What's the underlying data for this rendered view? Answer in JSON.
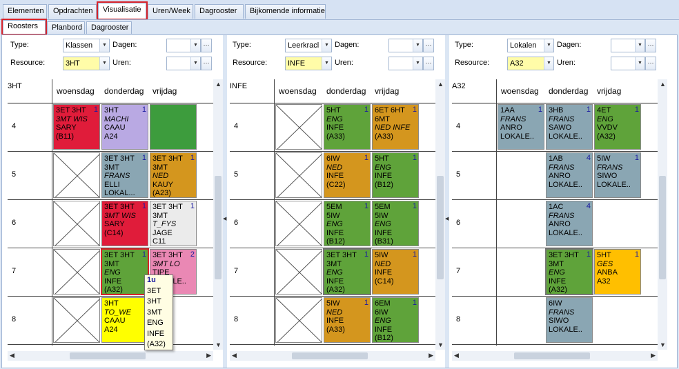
{
  "top_tabs": [
    "Elementen",
    "Opdrachten",
    "Visualisatie",
    "Uren/Week",
    "Dagrooster",
    "Bijkomende informatie"
  ],
  "sub_tabs": [
    "Roosters",
    "Planbord",
    "Dagrooster"
  ],
  "labels": {
    "type": "Type:",
    "resource": "Resource:",
    "dagen": "Dagen:",
    "uren": "Uren:"
  },
  "days": [
    "woensdag",
    "donderdag",
    "vrijdag"
  ],
  "hours": [
    "4",
    "5",
    "6",
    "7",
    "8"
  ],
  "panes": [
    {
      "type": "Klassen",
      "resource": "3HT",
      "title": "3HT",
      "cells": [
        {
          "row": 0,
          "col": 0,
          "color": "#e01c3a",
          "lines": [
            "3ET  3HT",
            "3MT  WIS",
            "SARY",
            "(B11)"
          ],
          "ital": [
            1
          ],
          "num": "1"
        },
        {
          "row": 0,
          "col": 1,
          "color": "#b9a9e3",
          "lines": [
            "3HT",
            "MACHI",
            "CAAU",
            "A24"
          ],
          "ital": [
            1
          ],
          "num": "1"
        },
        {
          "row": 0,
          "col": 2,
          "color": "#3d9c3d",
          "lines": [],
          "ital": [],
          "num": ""
        },
        {
          "row": 1,
          "col": 0,
          "x": true
        },
        {
          "row": 1,
          "col": 1,
          "color": "#8aa6b3",
          "lines": [
            "3ET  3HT",
            "3MT",
            "FRANS",
            "ELLI",
            "LOKAL..."
          ],
          "ital": [
            2
          ],
          "num": "1"
        },
        {
          "row": 1,
          "col": 2,
          "color": "#d4961e",
          "lines": [
            "3ET  3HT",
            "3MT",
            "NED",
            "KAUY",
            "(A23)"
          ],
          "ital": [
            2
          ],
          "num": "1"
        },
        {
          "row": 2,
          "col": 0,
          "x": true
        },
        {
          "row": 2,
          "col": 1,
          "color": "#e01c3a",
          "lines": [
            "3ET  3HT",
            "3MT  WIS",
            "SARY",
            "(C14)"
          ],
          "ital": [
            1
          ],
          "num": "1"
        },
        {
          "row": 2,
          "col": 2,
          "color": "#ebebeb",
          "lines": [
            "3ET  3HT",
            "3MT",
            "T_FYS",
            "JAGE",
            "C11"
          ],
          "ital": [
            2
          ],
          "num": "1"
        },
        {
          "row": 3,
          "col": 0,
          "x": true
        },
        {
          "row": 3,
          "col": 1,
          "color": "#5fa33a",
          "lines": [
            "3ET  3HT",
            "3MT",
            "ENG",
            "INFE",
            "(A32)"
          ],
          "ital": [
            2
          ],
          "num": "1",
          "sel": true
        },
        {
          "row": 3,
          "col": 2,
          "color": "#ea88b4",
          "lines": [
            "3ET  3HT",
            "3MT  LO",
            "TIPE",
            "LOKALE.."
          ],
          "ital": [
            1
          ],
          "num": "2"
        },
        {
          "row": 4,
          "col": 0,
          "x": true
        },
        {
          "row": 4,
          "col": 1,
          "color": "#ffff00",
          "lines": [
            "3HT",
            "TO_WE",
            "CAAU",
            "A24"
          ],
          "ital": [
            1
          ],
          "num": ""
        },
        {
          "row": 4,
          "col": 2,
          "color": "#ffffff",
          "lines": [],
          "ital": [],
          "num": "",
          "empty": true
        }
      ]
    },
    {
      "type": "Leerkracl",
      "resource": "INFE",
      "title": "INFE",
      "cells": [
        {
          "row": 0,
          "col": 0,
          "x": true
        },
        {
          "row": 0,
          "col": 1,
          "color": "#5fa33a",
          "lines": [
            "5HT",
            "ENG",
            "INFE",
            "(A33)"
          ],
          "ital": [
            1
          ],
          "num": "1"
        },
        {
          "row": 0,
          "col": 2,
          "color": "#d4961e",
          "lines": [
            "6ET  6HT",
            "6MT",
            "NED  INFE",
            "(A33)"
          ],
          "ital": [
            2
          ],
          "num": "1"
        },
        {
          "row": 1,
          "col": 0,
          "x": true
        },
        {
          "row": 1,
          "col": 1,
          "color": "#d4961e",
          "lines": [
            "6IW",
            "NED",
            "INFE",
            "(C22)"
          ],
          "ital": [
            1
          ],
          "num": "1"
        },
        {
          "row": 1,
          "col": 2,
          "color": "#5fa33a",
          "lines": [
            "5HT",
            "ENG",
            "INFE",
            "(B12)"
          ],
          "ital": [
            1
          ],
          "num": "1"
        },
        {
          "row": 2,
          "col": 0,
          "x": true
        },
        {
          "row": 2,
          "col": 1,
          "color": "#5fa33a",
          "lines": [
            "5EM",
            "5IW",
            "ENG",
            "INFE",
            "(B12)"
          ],
          "ital": [
            2
          ],
          "num": "1"
        },
        {
          "row": 2,
          "col": 2,
          "color": "#5fa33a",
          "lines": [
            "5EM",
            "5IW",
            "ENG",
            "INFE",
            "(B31)"
          ],
          "ital": [
            2
          ],
          "num": "1"
        },
        {
          "row": 3,
          "col": 0,
          "x": true
        },
        {
          "row": 3,
          "col": 1,
          "color": "#5fa33a",
          "lines": [
            "3ET  3HT",
            "3MT",
            "ENG",
            "INFE",
            "(A32)"
          ],
          "ital": [
            2
          ],
          "num": "1",
          "gsel": true
        },
        {
          "row": 3,
          "col": 2,
          "color": "#d4961e",
          "lines": [
            "5IW",
            "NED",
            "INFE",
            "(C14)"
          ],
          "ital": [
            1
          ],
          "num": "1"
        },
        {
          "row": 4,
          "col": 0,
          "x": true
        },
        {
          "row": 4,
          "col": 1,
          "color": "#d4961e",
          "lines": [
            "5IW",
            "NED",
            "INFE",
            "(A33)"
          ],
          "ital": [
            1
          ],
          "num": "1"
        },
        {
          "row": 4,
          "col": 2,
          "color": "#5fa33a",
          "lines": [
            "6EM",
            "6IW",
            "ENG",
            "INFE",
            "(B12)"
          ],
          "ital": [
            2
          ],
          "num": "1"
        }
      ]
    },
    {
      "type": "Lokalen",
      "resource": "A32",
      "title": "A32",
      "cells": [
        {
          "row": 0,
          "col": 0,
          "color": "#8aa6b3",
          "lines": [
            "1AA",
            "FRANS",
            "ANRO",
            "LOKALE.."
          ],
          "ital": [
            1
          ],
          "num": "1"
        },
        {
          "row": 0,
          "col": 1,
          "color": "#8aa6b3",
          "lines": [
            "3HB",
            "FRANS",
            "SAWO",
            "LOKALE.."
          ],
          "ital": [
            1
          ],
          "num": "1"
        },
        {
          "row": 0,
          "col": 2,
          "color": "#5fa33a",
          "lines": [
            "4ET",
            "ENG",
            "VVDV",
            "(A32)"
          ],
          "ital": [
            1
          ],
          "num": "1"
        },
        {
          "row": 1,
          "col": 1,
          "color": "#8aa6b3",
          "lines": [
            "1AB",
            "FRANS",
            "ANRO",
            "LOKALE.."
          ],
          "ital": [
            1
          ],
          "num": "4"
        },
        {
          "row": 1,
          "col": 2,
          "color": "#8aa6b3",
          "lines": [
            "5IW",
            "FRANS",
            "SIWO",
            "LOKALE.."
          ],
          "ital": [
            1
          ],
          "num": "1"
        },
        {
          "row": 2,
          "col": 1,
          "color": "#8aa6b3",
          "lines": [
            "1AC",
            "FRANS",
            "ANRO",
            "LOKALE.."
          ],
          "ital": [
            1
          ],
          "num": "4"
        },
        {
          "row": 3,
          "col": 1,
          "color": "#5fa33a",
          "lines": [
            "3ET  3HT",
            "3MT",
            "ENG",
            "INFE",
            "(A32)"
          ],
          "ital": [
            2
          ],
          "num": "1",
          "gsel": true
        },
        {
          "row": 3,
          "col": 2,
          "color": "#ffbf00",
          "lines": [
            "5HT",
            "GES",
            "ANBA",
            "A32"
          ],
          "ital": [
            1
          ],
          "num": "1"
        },
        {
          "row": 4,
          "col": 1,
          "color": "#8aa6b3",
          "lines": [
            "6IW",
            "FRANS",
            "SIWO",
            "LOKALE.."
          ],
          "ital": [
            1
          ],
          "num": ""
        }
      ]
    }
  ],
  "tooltip": [
    "1u",
    "3ET",
    "3HT",
    "3MT",
    "ENG",
    "INFE",
    "(A32)"
  ],
  "colors": {
    "red_highlight": "#d8232a",
    "tooltip_first": "#1a1aa0"
  }
}
